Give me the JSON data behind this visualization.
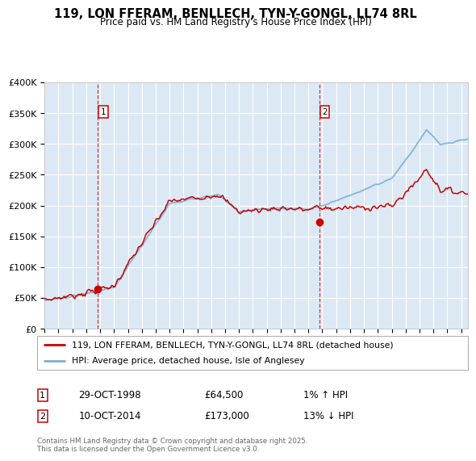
{
  "title": "119, LON FFERAM, BENLLECH, TYN-Y-GONGL, LL74 8RL",
  "subtitle": "Price paid vs. HM Land Registry's House Price Index (HPI)",
  "bg_color": "#dce9f5",
  "line1_color": "#cc0000",
  "line2_color": "#7bafd4",
  "line1_label": "119, LON FFERAM, BENLLECH, TYN-Y-GONGL, LL74 8RL (detached house)",
  "line2_label": "HPI: Average price, detached house, Isle of Anglesey",
  "sale1_date": 1998.83,
  "sale1_price": 64500,
  "sale2_date": 2014.78,
  "sale2_price": 173000,
  "vline1_x": 1998.83,
  "vline2_x": 2014.78,
  "legend_label1_date": "29-OCT-1998",
  "legend_label1_price": "£64,500",
  "legend_label1_hpi": "1% ↑ HPI",
  "legend_label2_date": "10-OCT-2014",
  "legend_label2_price": "£173,000",
  "legend_label2_hpi": "13% ↓ HPI",
  "footer": "Contains HM Land Registry data © Crown copyright and database right 2025.\nThis data is licensed under the Open Government Licence v3.0.",
  "ylim": [
    0,
    400000
  ],
  "xlim": [
    1995,
    2025.5
  ],
  "yticks": [
    0,
    50000,
    100000,
    150000,
    200000,
    250000,
    300000,
    350000,
    400000
  ],
  "ytick_labels": [
    "£0",
    "£50K",
    "£100K",
    "£150K",
    "£200K",
    "£250K",
    "£300K",
    "£350K",
    "£400K"
  ],
  "xticks": [
    1995,
    1996,
    1997,
    1998,
    1999,
    2000,
    2001,
    2002,
    2003,
    2004,
    2005,
    2006,
    2007,
    2008,
    2009,
    2010,
    2011,
    2012,
    2013,
    2014,
    2015,
    2016,
    2017,
    2018,
    2019,
    2020,
    2021,
    2022,
    2023,
    2024,
    2025
  ],
  "marker_box_color": "#cc0000"
}
